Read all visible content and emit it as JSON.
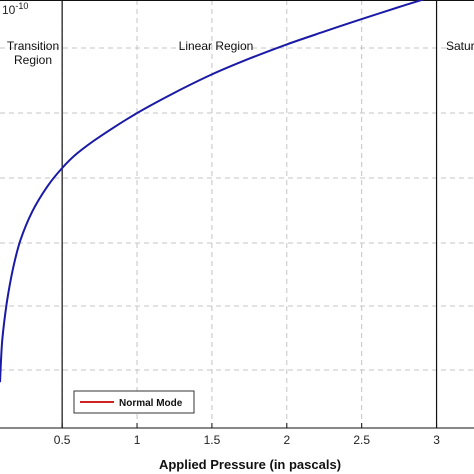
{
  "chart_data": {
    "type": "line",
    "title": "",
    "xlabel": "Applied Pressure (in pascals)",
    "ylabel": "",
    "y_exponent_label": "10",
    "y_exponent_sup": "-10",
    "xlim": [
      0.085,
      3.25
    ],
    "x_ticks": [
      "0.5",
      "1",
      "1.5",
      "2",
      "2.5",
      "3"
    ],
    "y_grid_count": 7,
    "grid": "dashed",
    "legend": {
      "placement": "bottom-left",
      "entries": [
        "Normal Mode"
      ]
    },
    "regions": [
      {
        "label_lines": [
          "Transition",
          "Region"
        ],
        "boundary_x": 0.5
      },
      {
        "label_lines": [
          "Linear Region"
        ],
        "boundary_x": 3.0
      },
      {
        "label_lines": [
          "Satur"
        ],
        "boundary_x": null
      }
    ],
    "series": [
      {
        "name": "Normal Mode",
        "color": "#1a1aa6",
        "x": [
          0.085,
          0.1,
          0.13,
          0.17,
          0.22,
          0.3,
          0.4,
          0.5,
          0.6,
          0.75,
          1.0,
          1.25,
          1.5,
          1.75,
          2.0,
          2.25,
          2.5,
          2.75,
          3.0,
          3.25
        ],
        "y_frac": [
          0.11,
          0.21,
          0.3,
          0.38,
          0.45,
          0.52,
          0.58,
          0.625,
          0.66,
          0.7,
          0.757,
          0.806,
          0.85,
          0.888,
          0.922,
          0.953,
          0.983,
          1.012,
          1.04,
          1.066
        ]
      }
    ],
    "legend_line_color": "#cc2222"
  }
}
